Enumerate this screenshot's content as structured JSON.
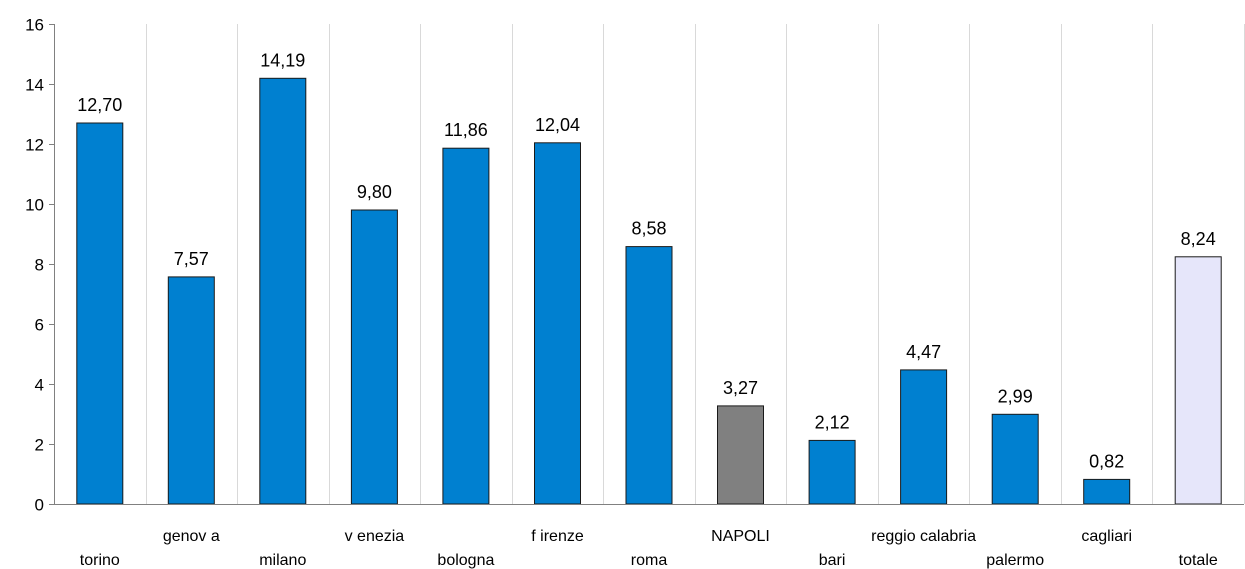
{
  "chart_data": {
    "type": "bar",
    "title": "",
    "xlabel": "",
    "ylabel": "",
    "ylim": [
      0,
      16
    ],
    "yticks": [
      0,
      2,
      4,
      6,
      8,
      10,
      12,
      14,
      16
    ],
    "grid": "vertical",
    "legend": "none",
    "categories": [
      "torino",
      "genov a",
      "milano",
      "v enezia",
      "bologna",
      "f irenze",
      "roma",
      "NAPOLI",
      "bari",
      "reggio calabria",
      "palermo",
      "cagliari",
      "totale"
    ],
    "values": [
      12.7,
      7.57,
      14.19,
      9.8,
      11.86,
      12.04,
      8.58,
      3.27,
      2.12,
      4.47,
      2.99,
      0.82,
      8.24
    ],
    "value_labels": [
      "12,70",
      "7,57",
      "14,19",
      "9,80",
      "11,86",
      "12,04",
      "8,58",
      "3,27",
      "2,12",
      "4,47",
      "2,99",
      "0,82",
      "8,24"
    ],
    "bar_colors": [
      "#0080d0",
      "#0080d0",
      "#0080d0",
      "#0080d0",
      "#0080d0",
      "#0080d0",
      "#0080d0",
      "#808080",
      "#0080d0",
      "#0080d0",
      "#0080d0",
      "#0080d0",
      "#e6e6fa"
    ]
  }
}
